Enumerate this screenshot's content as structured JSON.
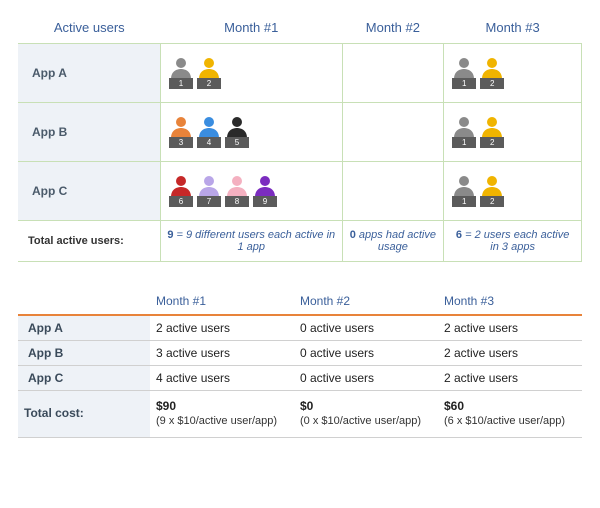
{
  "colors": {
    "header_text": "#3a5f9a",
    "orange_accent": "#e8833a",
    "row_label_bg": "#eef2f7",
    "grid_green": "#c8e0b6",
    "grid_gray": "#d0d0d0",
    "badge_bg": "#5b5b5b",
    "gray_person": "#8a8a8a",
    "yellow_person": "#f0b400",
    "orange_person": "#e8833a",
    "blue_person": "#3a8de0",
    "black_person": "#2a2a2a",
    "red_person": "#c62828",
    "lavender_person": "#b9a6e8",
    "pink_person": "#f4b0c0",
    "purple_person": "#7b2cbf"
  },
  "usersTable": {
    "headers": {
      "rowLabel": "Active users",
      "m1": "Month #1",
      "m2": "Month #2",
      "m3": "Month #3"
    },
    "rows": [
      {
        "label": "App A",
        "m1": [
          {
            "n": "1",
            "colorKey": "gray_person"
          },
          {
            "n": "2",
            "colorKey": "yellow_person"
          }
        ],
        "m2": [],
        "m3": [
          {
            "n": "1",
            "colorKey": "gray_person"
          },
          {
            "n": "2",
            "colorKey": "yellow_person"
          }
        ]
      },
      {
        "label": "App B",
        "m1": [
          {
            "n": "3",
            "colorKey": "orange_person"
          },
          {
            "n": "4",
            "colorKey": "blue_person"
          },
          {
            "n": "5",
            "colorKey": "black_person"
          }
        ],
        "m2": [],
        "m3": [
          {
            "n": "1",
            "colorKey": "gray_person"
          },
          {
            "n": "2",
            "colorKey": "yellow_person"
          }
        ]
      },
      {
        "label": "App C",
        "m1": [
          {
            "n": "6",
            "colorKey": "red_person"
          },
          {
            "n": "7",
            "colorKey": "lavender_person"
          },
          {
            "n": "8",
            "colorKey": "pink_person"
          },
          {
            "n": "9",
            "colorKey": "purple_person"
          }
        ],
        "m2": [],
        "m3": [
          {
            "n": "1",
            "colorKey": "gray_person"
          },
          {
            "n": "2",
            "colorKey": "yellow_person"
          }
        ]
      }
    ],
    "totalsLabel": "Total active users:",
    "totals": {
      "m1": {
        "num": "9",
        "text": " = 9 different users each active in 1 app"
      },
      "m2": {
        "num": "0",
        "text": " apps had active usage"
      },
      "m3": {
        "num": "6",
        "text": " = 2 users each active in 3 apps"
      }
    }
  },
  "costTable": {
    "headers": {
      "rowLabel": "",
      "m1": "Month #1",
      "m2": "Month #2",
      "m3": "Month #3"
    },
    "rows": [
      {
        "label": "App A",
        "m1": "2 active users",
        "m2": "0 active users",
        "m3": "2 active users"
      },
      {
        "label": "App B",
        "m1": "3 active users",
        "m2": "0 active users",
        "m3": "2 active users"
      },
      {
        "label": "App C",
        "m1": "4 active users",
        "m2": "0 active users",
        "m3": "2 active users"
      }
    ],
    "totalLabel": "Total cost:",
    "totals": {
      "m1": {
        "amount": "$90",
        "detail": "(9 x $10/active user/app)"
      },
      "m2": {
        "amount": "$0",
        "detail": "(0 x $10/active user/app)"
      },
      "m3": {
        "amount": "$60",
        "detail": "(6 x $10/active user/app)"
      }
    }
  }
}
